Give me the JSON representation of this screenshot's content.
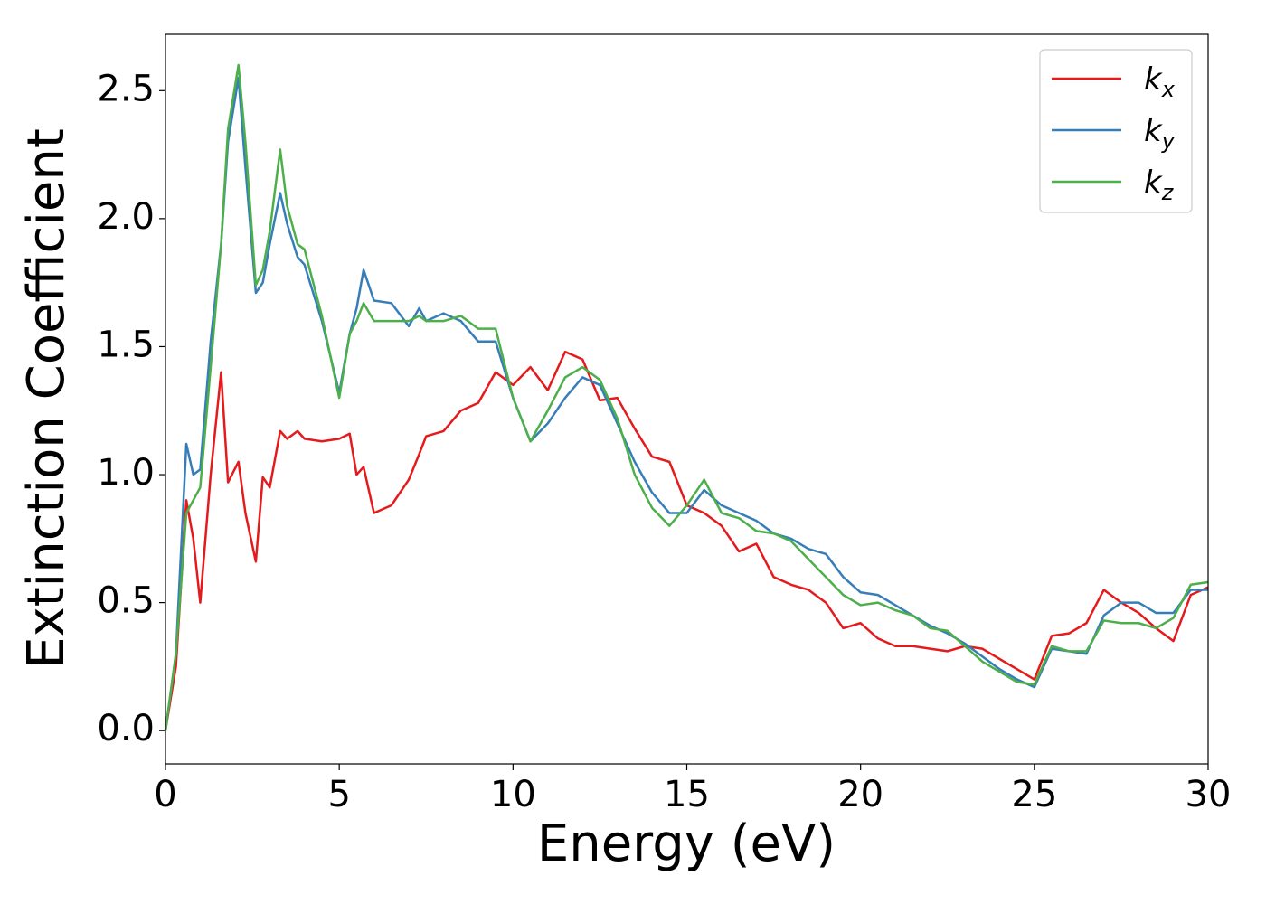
{
  "chart_data": {
    "type": "line",
    "xlabel": "Energy (eV)",
    "ylabel": "Extinction Coefficient",
    "x": [
      0,
      0.3,
      0.6,
      0.8,
      1.0,
      1.3,
      1.6,
      1.8,
      2.1,
      2.3,
      2.6,
      2.8,
      3.0,
      3.3,
      3.5,
      3.8,
      4.0,
      4.5,
      5.0,
      5.3,
      5.5,
      5.7,
      6.0,
      6.5,
      7.0,
      7.3,
      7.5,
      8.0,
      8.5,
      9.0,
      9.5,
      10.0,
      10.5,
      11.0,
      11.5,
      12.0,
      12.5,
      13.0,
      13.5,
      14.0,
      14.5,
      15.0,
      15.5,
      16.0,
      16.5,
      17.0,
      17.5,
      18.0,
      18.5,
      19.0,
      19.5,
      20.0,
      20.5,
      21.0,
      21.5,
      22.0,
      22.5,
      23.0,
      23.5,
      24.0,
      24.5,
      25.0,
      25.5,
      26.0,
      26.5,
      27.0,
      27.5,
      28.0,
      28.5,
      29.0,
      29.5,
      30.0
    ],
    "series": [
      {
        "name": "kx",
        "color": "#e41a1c",
        "values": [
          0,
          0.25,
          0.9,
          0.75,
          0.5,
          1.0,
          1.4,
          0.97,
          1.05,
          0.85,
          0.66,
          0.99,
          0.95,
          1.17,
          1.14,
          1.17,
          1.14,
          1.13,
          1.14,
          1.16,
          1.0,
          1.03,
          0.85,
          0.88,
          0.98,
          1.08,
          1.15,
          1.17,
          1.25,
          1.28,
          1.4,
          1.35,
          1.42,
          1.33,
          1.48,
          1.45,
          1.29,
          1.3,
          1.18,
          1.07,
          1.05,
          0.88,
          0.85,
          0.8,
          0.7,
          0.73,
          0.6,
          0.57,
          0.55,
          0.5,
          0.4,
          0.42,
          0.36,
          0.33,
          0.33,
          0.32,
          0.31,
          0.33,
          0.32,
          0.28,
          0.24,
          0.2,
          0.37,
          0.38,
          0.42,
          0.55,
          0.5,
          0.46,
          0.4,
          0.35,
          0.53,
          0.56
        ]
      },
      {
        "name": "ky",
        "color": "#377eb8",
        "values": [
          0,
          0.3,
          1.12,
          1.0,
          1.02,
          1.52,
          1.9,
          2.3,
          2.55,
          2.2,
          1.71,
          1.75,
          1.9,
          2.1,
          1.98,
          1.85,
          1.82,
          1.6,
          1.32,
          1.55,
          1.65,
          1.8,
          1.68,
          1.67,
          1.58,
          1.65,
          1.6,
          1.63,
          1.6,
          1.52,
          1.52,
          1.3,
          1.13,
          1.2,
          1.3,
          1.38,
          1.35,
          1.2,
          1.05,
          0.93,
          0.85,
          0.85,
          0.94,
          0.88,
          0.85,
          0.82,
          0.77,
          0.75,
          0.71,
          0.69,
          0.6,
          0.54,
          0.53,
          0.49,
          0.45,
          0.41,
          0.38,
          0.34,
          0.29,
          0.24,
          0.2,
          0.17,
          0.32,
          0.31,
          0.3,
          0.45,
          0.5,
          0.5,
          0.46,
          0.46,
          0.55,
          0.55
        ]
      },
      {
        "name": "kz",
        "color": "#4daf4a",
        "values": [
          0,
          0.3,
          0.85,
          0.9,
          0.95,
          1.42,
          1.9,
          2.35,
          2.6,
          2.3,
          1.74,
          1.8,
          1.95,
          2.27,
          2.05,
          1.9,
          1.88,
          1.62,
          1.3,
          1.55,
          1.6,
          1.67,
          1.6,
          1.6,
          1.6,
          1.62,
          1.6,
          1.6,
          1.62,
          1.57,
          1.57,
          1.3,
          1.13,
          1.25,
          1.38,
          1.42,
          1.37,
          1.22,
          1.0,
          0.87,
          0.8,
          0.88,
          0.98,
          0.85,
          0.83,
          0.78,
          0.77,
          0.74,
          0.67,
          0.6,
          0.53,
          0.49,
          0.5,
          0.47,
          0.45,
          0.4,
          0.39,
          0.33,
          0.27,
          0.23,
          0.19,
          0.18,
          0.33,
          0.31,
          0.31,
          0.43,
          0.42,
          0.42,
          0.4,
          0.44,
          0.57,
          0.58
        ]
      }
    ],
    "xlim": [
      0,
      30
    ],
    "xticks": [
      0,
      5,
      10,
      15,
      20,
      25,
      30
    ],
    "ylim": [
      -0.13,
      2.72
    ],
    "yticks": [
      {
        "value": 0,
        "label": "0.0"
      },
      0.5,
      {
        "value": 1,
        "label": "1.0"
      },
      1.5,
      {
        "value": 2,
        "label": "2.0"
      },
      2.5
    ],
    "legend": "upper right"
  }
}
